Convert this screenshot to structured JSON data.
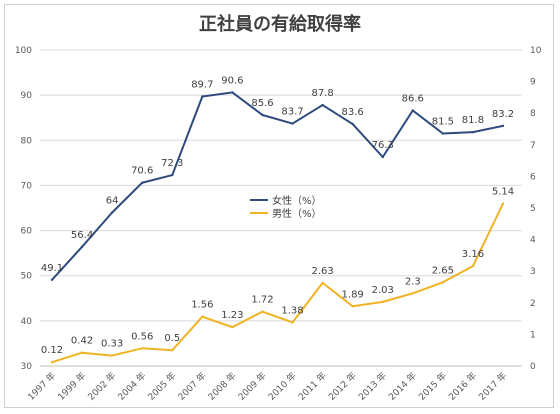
{
  "chart_data": {
    "type": "line",
    "title": "正社員の有給取得率",
    "categories": [
      "1997 年",
      "1999 年",
      "2002 年",
      "2004 年",
      "2005 年",
      "2007 年",
      "2008 年",
      "2009 年",
      "2010 年",
      "2011 年",
      "2012 年",
      "2013 年",
      "2014 年",
      "2015 年",
      "2016 年",
      "2017 年"
    ],
    "series": [
      {
        "name": "女性（%）",
        "axis": "left",
        "color": "#2e4a7d",
        "values": [
          49.1,
          56.4,
          64,
          70.6,
          72.3,
          89.7,
          90.6,
          85.6,
          83.7,
          87.8,
          83.6,
          76.3,
          86.6,
          81.5,
          81.8,
          83.2
        ],
        "labels": [
          "49.1",
          "56.4",
          "64",
          "70.6",
          "72.3",
          "89.7",
          "90.6",
          "85.6",
          "83.7",
          "87.8",
          "83.6",
          "76.3",
          "86.6",
          "81.5",
          "81.8",
          "83.2"
        ]
      },
      {
        "name": "男性（%）",
        "axis": "right",
        "color": "#f0b323",
        "values": [
          0.12,
          0.42,
          0.33,
          0.56,
          0.5,
          1.56,
          1.23,
          1.72,
          1.38,
          2.63,
          1.89,
          2.03,
          2.3,
          2.65,
          3.16,
          5.14
        ],
        "labels": [
          "0.12",
          "0.42",
          "0.33",
          "0.56",
          "0.5",
          "1.56",
          "1.23",
          "1.72",
          "1.38",
          "2.63",
          "1.89",
          "2.03",
          "2.3",
          "2.65",
          "3.16",
          "5.14"
        ]
      }
    ],
    "ylim_left": [
      30,
      100
    ],
    "yticks_left": [
      "30",
      "40",
      "50",
      "60",
      "70",
      "80",
      "90",
      "100"
    ],
    "ylim_right": [
      0,
      10
    ],
    "yticks_right": [
      "0",
      "1",
      "2",
      "3",
      "4",
      "5",
      "6",
      "7",
      "8",
      "9",
      "10"
    ],
    "grid": true,
    "legend": "center-right"
  }
}
